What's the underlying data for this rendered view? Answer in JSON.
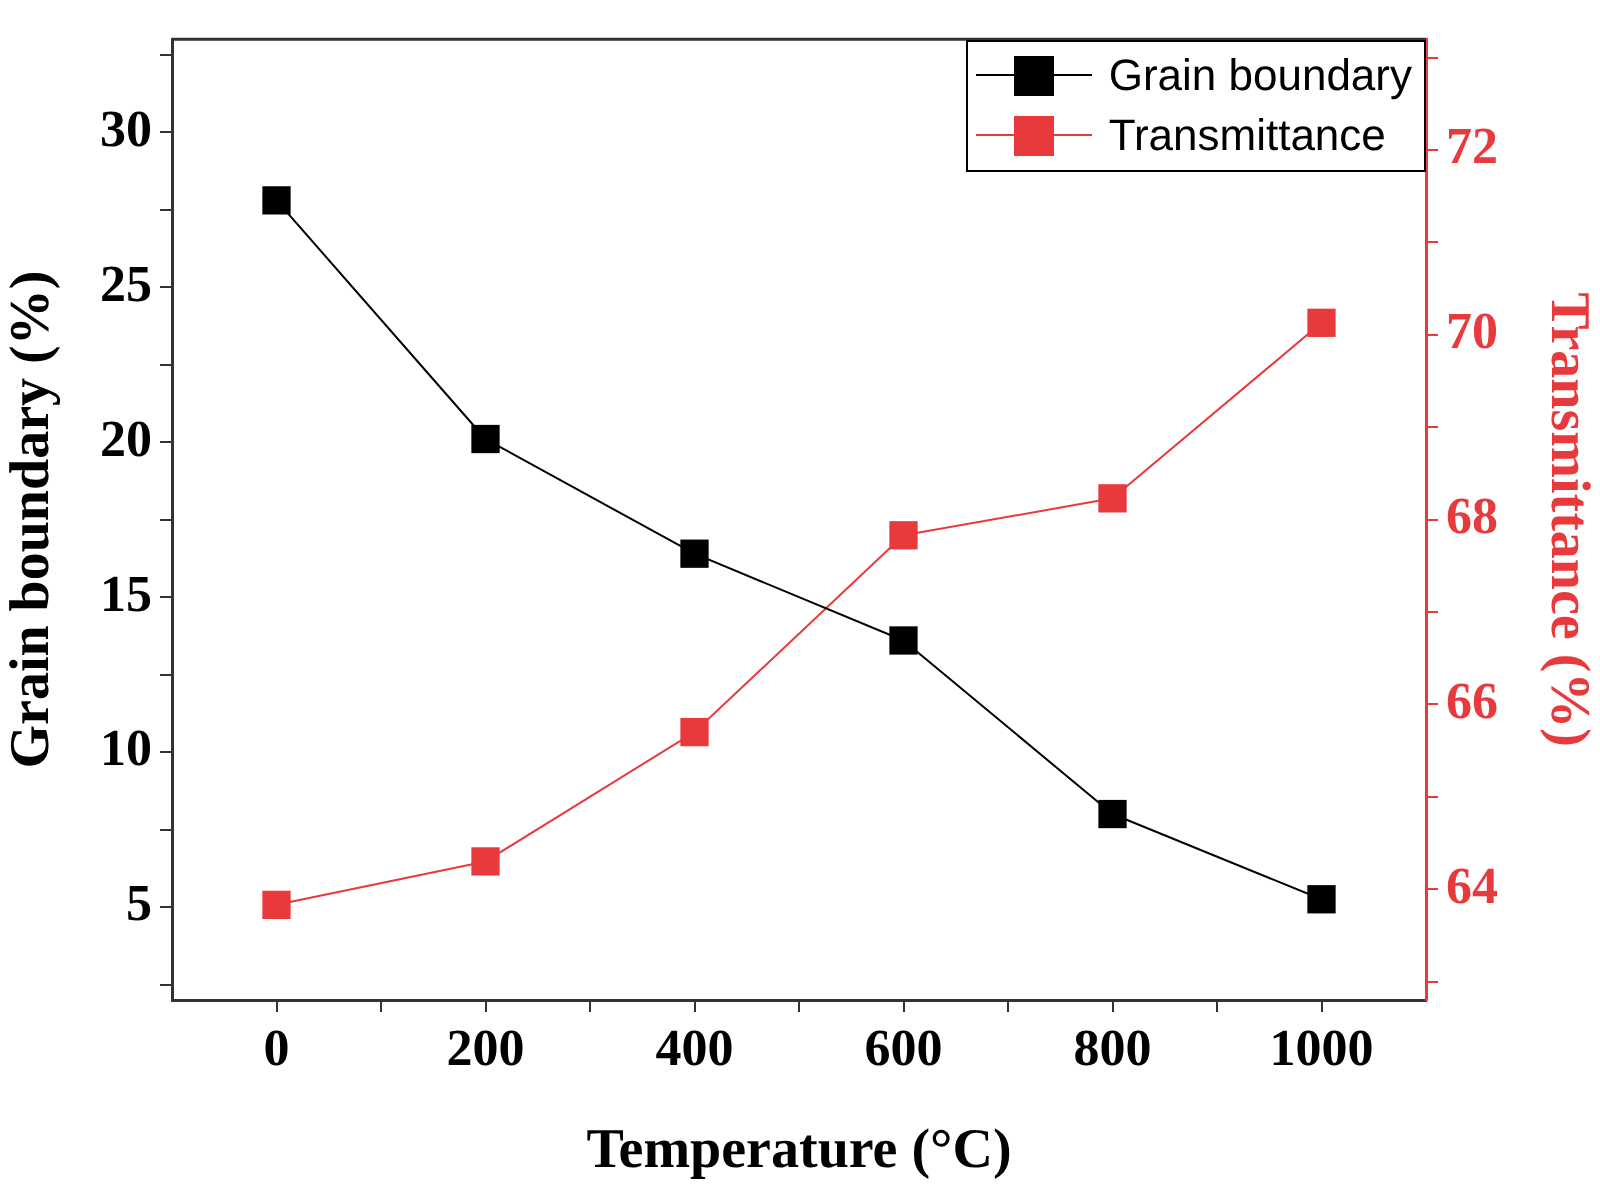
{
  "chart_data": {
    "type": "line",
    "xlabel": "Temperature (°C)",
    "ylabel": "Grain boundary (%)",
    "y2label": "Transmittance (%)",
    "x": [
      0,
      200,
      400,
      600,
      800,
      1000
    ],
    "xlim": [
      -100,
      1100
    ],
    "xticks": [
      0,
      {
        "value": 100,
        "label": null
      },
      200,
      {
        "value": 300,
        "label": null
      },
      400,
      {
        "value": 500,
        "label": null
      },
      600,
      {
        "value": 700,
        "label": null
      },
      800,
      {
        "value": 900,
        "label": null
      },
      1000
    ],
    "ylim": [
      2,
      33
    ],
    "yticks": [
      {
        "value": 2.5,
        "label": null
      },
      5,
      {
        "value": 7.5,
        "label": null
      },
      10,
      {
        "value": 12.5,
        "label": null
      },
      15,
      {
        "value": 17.5,
        "label": null
      },
      20,
      {
        "value": 22.5,
        "label": null
      },
      25,
      {
        "value": 27.5,
        "label": null
      },
      30,
      {
        "value": 32.5,
        "label": null
      }
    ],
    "y2lim": [
      62.8,
      73.2
    ],
    "y2ticks": [
      {
        "value": 63,
        "label": null
      },
      64,
      {
        "value": 65,
        "label": null
      },
      66,
      {
        "value": 67,
        "label": null
      },
      68,
      {
        "value": 69,
        "label": null
      },
      70,
      {
        "value": 71,
        "label": null
      },
      72,
      {
        "value": 73,
        "label": null
      }
    ],
    "series": [
      {
        "name": "Grain boundary",
        "color": "#000000",
        "values": [
          27.8,
          20.1,
          16.4,
          13.6,
          8.0,
          5.25
        ]
      },
      {
        "name": "Transmittance",
        "color": "#e8393c",
        "axis": "y2",
        "values": [
          63.83,
          64.3,
          65.7,
          67.83,
          68.23,
          70.13
        ]
      }
    ],
    "marker": "square",
    "line_style": "solid",
    "grid": false,
    "legend": "top right"
  }
}
